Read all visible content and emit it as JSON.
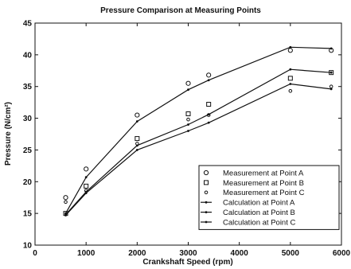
{
  "chart_data": {
    "type": "line",
    "title": "Pressure Comparison at Measuring Points",
    "xlabel": "Crankshaft Speed (rpm)",
    "ylabel": "Pressure (N/cm²)",
    "xlim": [
      0,
      6000
    ],
    "ylim": [
      10,
      45
    ],
    "xticks": [
      0,
      1000,
      2000,
      3000,
      4000,
      5000,
      6000
    ],
    "yticks": [
      10,
      15,
      20,
      25,
      30,
      35,
      40,
      45
    ],
    "grid": false,
    "legend_position": "bottom-right",
    "series": [
      {
        "name": "Measurement at Point A",
        "kind": "marker",
        "marker": "circle",
        "points": [
          [
            600,
            17.5
          ],
          [
            1000,
            22.0
          ],
          [
            2000,
            30.5
          ],
          [
            3000,
            35.5
          ],
          [
            3400,
            36.8
          ],
          [
            5000,
            40.7
          ],
          [
            5800,
            40.7
          ]
        ]
      },
      {
        "name": "Measurement at Point B",
        "kind": "marker",
        "marker": "square",
        "points": [
          [
            600,
            15.0
          ],
          [
            1000,
            19.3
          ],
          [
            2000,
            26.8
          ],
          [
            3000,
            30.7
          ],
          [
            3400,
            32.2
          ],
          [
            5000,
            36.3
          ],
          [
            5800,
            37.2
          ]
        ]
      },
      {
        "name": "Measurement at Point C",
        "kind": "marker",
        "marker": "diamond",
        "points": [
          [
            600,
            16.8
          ],
          [
            1000,
            18.6
          ],
          [
            2000,
            26.0
          ],
          [
            3000,
            29.8
          ],
          [
            3400,
            30.5
          ],
          [
            5000,
            34.3
          ],
          [
            5800,
            35.0
          ]
        ]
      },
      {
        "name": "Calculation at Point A",
        "kind": "line",
        "marker": "dot",
        "points": [
          [
            600,
            15.0
          ],
          [
            1000,
            20.7
          ],
          [
            2000,
            29.5
          ],
          [
            3000,
            34.5
          ],
          [
            3400,
            36.0
          ],
          [
            5000,
            41.2
          ],
          [
            5800,
            41.0
          ]
        ]
      },
      {
        "name": "Calculation at Point B",
        "kind": "line",
        "marker": "dot",
        "points": [
          [
            600,
            14.8
          ],
          [
            1000,
            18.4
          ],
          [
            2000,
            25.7
          ],
          [
            3000,
            29.0
          ],
          [
            3400,
            30.6
          ],
          [
            5000,
            37.7
          ],
          [
            5800,
            37.2
          ]
        ]
      },
      {
        "name": "Calculation at Point C",
        "kind": "line",
        "marker": "dot",
        "points": [
          [
            600,
            14.7
          ],
          [
            1000,
            18.2
          ],
          [
            2000,
            25.0
          ],
          [
            3000,
            28.0
          ],
          [
            3400,
            29.3
          ],
          [
            5000,
            35.4
          ],
          [
            5800,
            34.6
          ]
        ]
      }
    ]
  }
}
